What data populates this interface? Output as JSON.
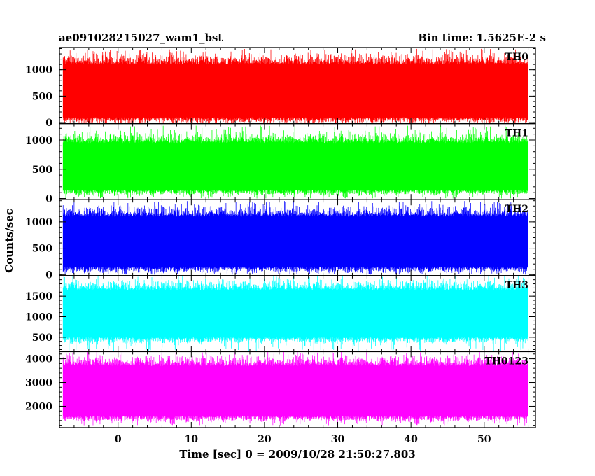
{
  "chart_data": {
    "type": "line",
    "title": "ae091028215027_wam1_bst",
    "bin_time_label": "Bin time: 1.5625E-2 s",
    "xlabel": "Time [sec] 0 = 2009/10/28 21:50:27.803",
    "ylabel": "Counts/sec",
    "xlim": [
      -8.0,
      57.0
    ],
    "data_x_range": [
      -7.5,
      56.0
    ],
    "x_ticks": [
      0,
      10,
      20,
      30,
      40,
      50
    ],
    "x_tick_labels": [
      "0",
      "10",
      "20",
      "30",
      "40",
      "50"
    ],
    "grid": false,
    "series": [
      {
        "name": "TH0",
        "color": "#ff0000",
        "ylim": [
          -20,
          1420
        ],
        "y_ticks": [
          0,
          500,
          1000
        ],
        "y_tick_labels": [
          "0",
          "500",
          "1000"
        ],
        "typical_low": 100,
        "typical_high": 1100,
        "min": 0,
        "max": 1400
      },
      {
        "name": "TH1",
        "color": "#00ff00",
        "ylim": [
          -20,
          1280
        ],
        "y_ticks": [
          0,
          500,
          1000
        ],
        "y_tick_labels": [
          "0",
          "500",
          "1000"
        ],
        "typical_low": 150,
        "typical_high": 950,
        "min": 0,
        "max": 1250
      },
      {
        "name": "TH2",
        "color": "#0000ff",
        "ylim": [
          -20,
          1420
        ],
        "y_ticks": [
          0,
          500,
          1000
        ],
        "y_tick_labels": [
          "0",
          "500",
          "1000"
        ],
        "typical_low": 150,
        "typical_high": 1100,
        "min": 0,
        "max": 1400
      },
      {
        "name": "TH3",
        "color": "#00ffff",
        "ylim": [
          150,
          2000
        ],
        "y_ticks": [
          500,
          1000,
          1500
        ],
        "y_tick_labels": [
          "500",
          "1000",
          "1500"
        ],
        "typical_low": 500,
        "typical_high": 1650,
        "min": 150,
        "max": 2000
      },
      {
        "name": "TH0123",
        "color": "#ff00ff",
        "ylim": [
          1100,
          4300
        ],
        "y_ticks": [
          2000,
          3000,
          4000
        ],
        "y_tick_labels": [
          "2000",
          "3000",
          "4000"
        ],
        "typical_low": 1600,
        "typical_high": 3700,
        "min": 1200,
        "max": 4300
      }
    ]
  }
}
